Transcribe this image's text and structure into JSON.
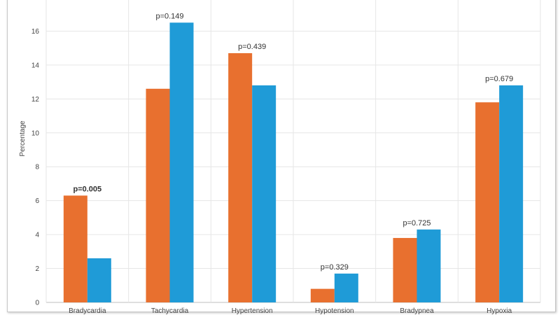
{
  "chart_data": {
    "type": "bar",
    "title": "",
    "xlabel": "",
    "ylabel": "Percentage",
    "ylim": [
      0,
      18
    ],
    "yticks": [
      0,
      2,
      4,
      6,
      8,
      10,
      12,
      14,
      16,
      18
    ],
    "grid": true,
    "categories": [
      "Bradycardia",
      "Tachycardia",
      "Hypertension",
      "Hypotension",
      "Bradypnea",
      "Hypoxia"
    ],
    "series": [
      {
        "values": [
          6.3,
          12.6,
          14.7,
          0.8,
          3.8,
          11.8
        ],
        "color": "#e8702f"
      },
      {
        "values": [
          2.6,
          16.5,
          12.8,
          1.7,
          4.3,
          12.8
        ],
        "color": "#1f9bd7"
      }
    ],
    "annotations": [
      "p=0.005",
      "p=0.149",
      "p=0.439",
      "p=0.329",
      "p=0.725",
      "p=0.679"
    ],
    "bold_annotations": [
      true,
      false,
      false,
      false,
      false,
      false
    ]
  }
}
